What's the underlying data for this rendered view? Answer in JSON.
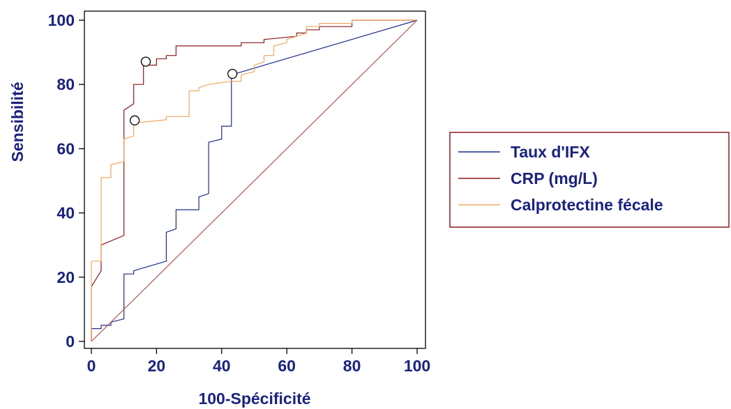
{
  "chart_data": {
    "type": "line",
    "title": "",
    "xlabel": "100-Spécificité",
    "ylabel": "Sensibilité",
    "xlim": [
      0,
      100
    ],
    "ylim": [
      0,
      100
    ],
    "x_ticks": [
      "0",
      "20",
      "40",
      "60",
      "80",
      "100"
    ],
    "y_ticks": [
      "0",
      "20",
      "40",
      "60",
      "80",
      "100"
    ],
    "grid": false,
    "legend_position": "right",
    "series": [
      {
        "name": "Taux d'IFX",
        "color": "#1f2d8a",
        "style": "step",
        "points": [
          [
            0,
            0
          ],
          [
            0,
            4
          ],
          [
            3,
            4
          ],
          [
            3,
            5
          ],
          [
            6,
            5
          ],
          [
            6,
            6
          ],
          [
            10,
            7
          ],
          [
            10,
            21
          ],
          [
            13,
            21
          ],
          [
            13,
            22
          ],
          [
            23,
            25
          ],
          [
            23,
            34
          ],
          [
            26,
            35
          ],
          [
            26,
            41
          ],
          [
            33,
            41
          ],
          [
            33,
            45
          ],
          [
            36,
            46
          ],
          [
            36,
            62
          ],
          [
            40,
            63
          ],
          [
            40,
            67
          ],
          [
            43,
            67
          ],
          [
            43,
            83
          ],
          [
            100,
            100
          ]
        ],
        "marker_points": [
          [
            43.3,
            83.3
          ]
        ]
      },
      {
        "name": "CRP (mg/L)",
        "color": "#8b1a1a",
        "style": "step",
        "points": [
          [
            0,
            0
          ],
          [
            0,
            17
          ],
          [
            3,
            22
          ],
          [
            3,
            30
          ],
          [
            10,
            33
          ],
          [
            10,
            72
          ],
          [
            13,
            74
          ],
          [
            13,
            80
          ],
          [
            16,
            80
          ],
          [
            16,
            86
          ],
          [
            20,
            86
          ],
          [
            20,
            88
          ],
          [
            23,
            88
          ],
          [
            23,
            89
          ],
          [
            26,
            89
          ],
          [
            26,
            92
          ],
          [
            46,
            92
          ],
          [
            46,
            93
          ],
          [
            53,
            93
          ],
          [
            53,
            94
          ],
          [
            63,
            95
          ],
          [
            63,
            96
          ],
          [
            66,
            96
          ],
          [
            66,
            97
          ],
          [
            70,
            97
          ],
          [
            70,
            98
          ],
          [
            80,
            98
          ],
          [
            80,
            100
          ],
          [
            100,
            100
          ]
        ],
        "marker_points": [
          [
            16.7,
            87.1
          ]
        ]
      },
      {
        "name": "Calprotectine fécale",
        "color": "#f0a860",
        "style": "step",
        "points": [
          [
            0,
            0
          ],
          [
            0,
            25
          ],
          [
            3,
            25
          ],
          [
            3,
            51
          ],
          [
            6,
            51
          ],
          [
            6,
            55
          ],
          [
            10,
            56
          ],
          [
            10,
            63
          ],
          [
            13,
            64
          ],
          [
            13,
            68
          ],
          [
            23,
            69
          ],
          [
            23,
            70
          ],
          [
            30,
            70
          ],
          [
            30,
            78
          ],
          [
            33,
            78
          ],
          [
            33,
            79
          ],
          [
            36,
            80
          ],
          [
            43,
            81
          ],
          [
            46,
            81
          ],
          [
            46,
            83
          ],
          [
            50,
            84
          ],
          [
            50,
            86
          ],
          [
            53,
            87
          ],
          [
            53,
            89
          ],
          [
            56,
            89
          ],
          [
            56,
            92
          ],
          [
            60,
            93
          ],
          [
            60,
            94
          ],
          [
            66,
            96
          ],
          [
            66,
            98
          ],
          [
            70,
            98
          ],
          [
            70,
            99
          ],
          [
            80,
            99
          ],
          [
            80,
            100
          ],
          [
            100,
            100
          ]
        ],
        "marker_points": [
          [
            13.3,
            68.8
          ]
        ]
      },
      {
        "name": "",
        "color": "#b05050",
        "style": "diagonal",
        "points": [
          [
            0,
            0
          ],
          [
            100,
            100
          ]
        ],
        "marker_points": []
      }
    ]
  }
}
